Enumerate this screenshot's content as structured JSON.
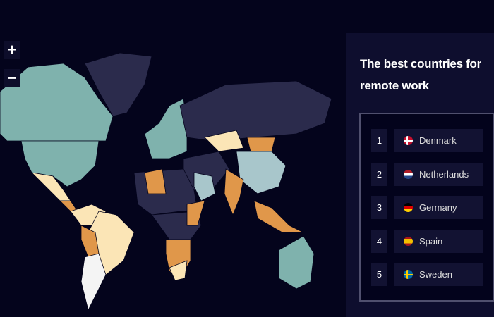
{
  "map": {
    "controls": {
      "zoom_in": "+",
      "zoom_out": "−"
    },
    "colors": {
      "background": "#04041c",
      "teal": "#7fb2ad",
      "navy": "#2b2b4c",
      "orange": "#e0974a",
      "cream": "#fbe5b6",
      "lightblue": "#a8c6cb",
      "white": "#f4f4f4"
    }
  },
  "panel": {
    "title": "The best countries for remote work",
    "ranking": [
      {
        "rank": "1",
        "country": "Denmark",
        "flag": "denmark-flag"
      },
      {
        "rank": "2",
        "country": "Netherlands",
        "flag": "netherlands-flag"
      },
      {
        "rank": "3",
        "country": "Germany",
        "flag": "germany-flag"
      },
      {
        "rank": "4",
        "country": "Spain",
        "flag": "spain-flag"
      },
      {
        "rank": "5",
        "country": "Sweden",
        "flag": "sweden-flag"
      }
    ]
  }
}
